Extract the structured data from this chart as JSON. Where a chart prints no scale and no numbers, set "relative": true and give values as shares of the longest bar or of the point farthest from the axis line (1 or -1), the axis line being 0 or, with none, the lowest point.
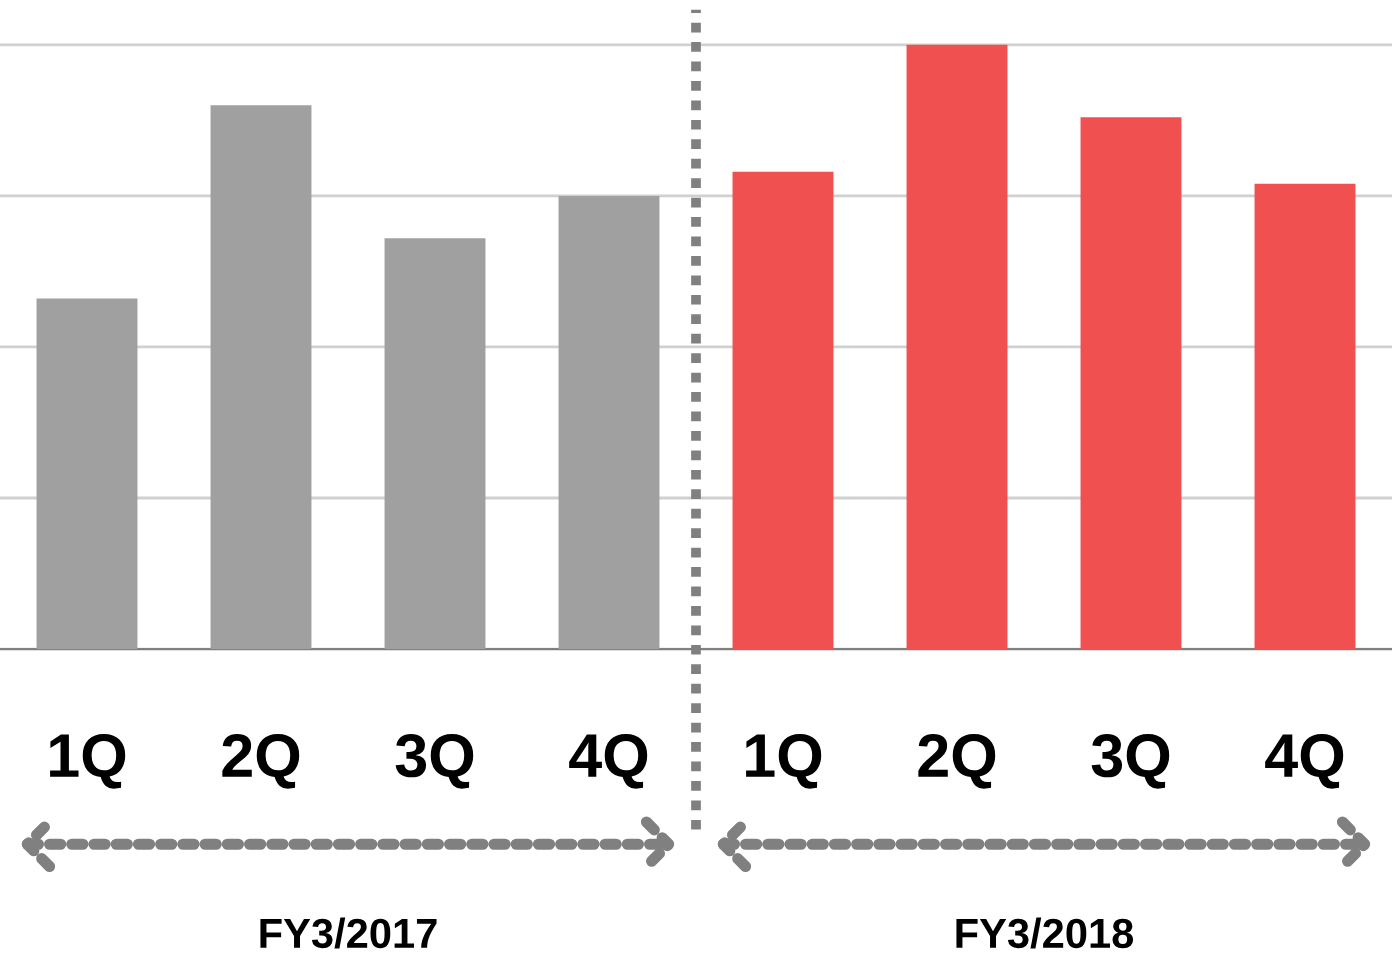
{
  "chart_data": {
    "type": "bar",
    "relative": true,
    "categories": [
      "1Q",
      "2Q",
      "3Q",
      "4Q",
      "1Q",
      "2Q",
      "3Q",
      "4Q"
    ],
    "values": [
      0.58,
      0.9,
      0.68,
      0.75,
      0.79,
      1.0,
      0.88,
      0.77
    ],
    "colors": [
      "#a0a0a0",
      "#a0a0a0",
      "#a0a0a0",
      "#a0a0a0",
      "#f05050",
      "#f05050",
      "#f05050",
      "#f05050"
    ],
    "annotations": [
      "FY3/2017",
      "FY3/2018"
    ],
    "grid": "y"
  }
}
